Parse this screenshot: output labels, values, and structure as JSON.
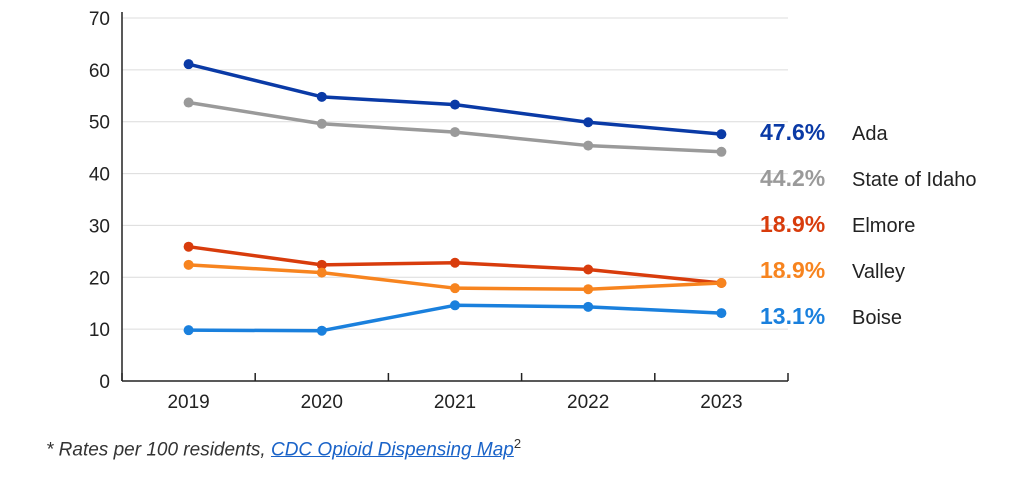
{
  "chart_data": {
    "type": "line",
    "title": "",
    "xlabel": "",
    "ylabel": "",
    "categories": [
      "2019",
      "2020",
      "2021",
      "2022",
      "2023"
    ],
    "ylim": [
      0,
      70
    ],
    "yticks": [
      0,
      10,
      20,
      30,
      40,
      50,
      60,
      70
    ],
    "grid": true,
    "series": [
      {
        "name": "Ada",
        "end_label": "47.6%",
        "color": "#0a3aa6",
        "values": [
          61.1,
          54.8,
          53.3,
          49.9,
          47.6
        ]
      },
      {
        "name": "State of Idaho",
        "end_label": "44.2%",
        "color": "#9a9a9a",
        "values": [
          53.7,
          49.6,
          48.0,
          45.4,
          44.2
        ]
      },
      {
        "name": "Elmore",
        "end_label": "18.9%",
        "color": "#d83c0c",
        "values": [
          25.9,
          22.4,
          22.8,
          21.5,
          18.9
        ]
      },
      {
        "name": "Valley",
        "end_label": "18.9%",
        "color": "#f7841f",
        "values": [
          22.4,
          20.9,
          17.9,
          17.7,
          18.9
        ]
      },
      {
        "name": "Boise",
        "end_label": "13.1%",
        "color": "#1a80dd",
        "values": [
          9.8,
          9.7,
          14.6,
          14.3,
          13.1
        ]
      }
    ]
  },
  "footnote": {
    "prefix": "* Rates per 100 residents, ",
    "link_text": "CDC Opioid Dispensing Map",
    "superscript": "2"
  }
}
